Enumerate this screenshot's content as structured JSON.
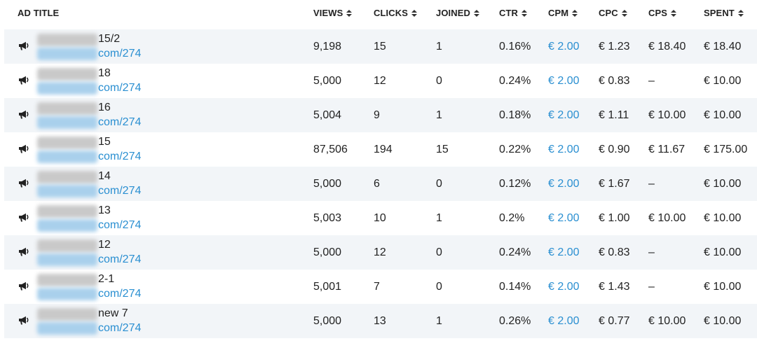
{
  "header": {
    "ad_title": "AD TITLE",
    "views": "VIEWS",
    "clicks": "CLICKS",
    "joined": "JOINED",
    "ctr": "CTR",
    "cpm": "CPM",
    "cpc": "CPC",
    "cps": "CPS",
    "spent": "SPENT"
  },
  "colors": {
    "accent_link": "#2a8fd1",
    "row_alt_bg": "#f2f5f8"
  },
  "rows": [
    {
      "title": "15/2",
      "url": "com/274",
      "views": "9,198",
      "clicks": "15",
      "joined": "1",
      "ctr": "0.16%",
      "cpm": "€ 2.00",
      "cpc": "€ 1.23",
      "cps": "€ 18.40",
      "spent": "€ 18.40"
    },
    {
      "title": "18",
      "url": "com/274",
      "views": "5,000",
      "clicks": "12",
      "joined": "0",
      "ctr": "0.24%",
      "cpm": "€ 2.00",
      "cpc": "€ 0.83",
      "cps": "–",
      "spent": "€ 10.00"
    },
    {
      "title": "16",
      "url": "com/274",
      "views": "5,004",
      "clicks": "9",
      "joined": "1",
      "ctr": "0.18%",
      "cpm": "€ 2.00",
      "cpc": "€ 1.11",
      "cps": "€ 10.00",
      "spent": "€ 10.00"
    },
    {
      "title": "15",
      "url": "com/274",
      "views": "87,506",
      "clicks": "194",
      "joined": "15",
      "ctr": "0.22%",
      "cpm": "€ 2.00",
      "cpc": "€ 0.90",
      "cps": "€ 11.67",
      "spent": "€ 175.00"
    },
    {
      "title": "14",
      "url": "com/274",
      "views": "5,000",
      "clicks": "6",
      "joined": "0",
      "ctr": "0.12%",
      "cpm": "€ 2.00",
      "cpc": "€ 1.67",
      "cps": "–",
      "spent": "€ 10.00"
    },
    {
      "title": "13",
      "url": "com/274",
      "views": "5,003",
      "clicks": "10",
      "joined": "1",
      "ctr": "0.2%",
      "cpm": "€ 2.00",
      "cpc": "€ 1.00",
      "cps": "€ 10.00",
      "spent": "€ 10.00"
    },
    {
      "title": "12",
      "url": "com/274",
      "views": "5,000",
      "clicks": "12",
      "joined": "0",
      "ctr": "0.24%",
      "cpm": "€ 2.00",
      "cpc": "€ 0.83",
      "cps": "–",
      "spent": "€ 10.00"
    },
    {
      "title": "2-1",
      "url": "com/274",
      "views": "5,001",
      "clicks": "7",
      "joined": "0",
      "ctr": "0.14%",
      "cpm": "€ 2.00",
      "cpc": "€ 1.43",
      "cps": "–",
      "spent": "€ 10.00"
    },
    {
      "title": "new 7",
      "url": "com/274",
      "views": "5,000",
      "clicks": "13",
      "joined": "1",
      "ctr": "0.26%",
      "cpm": "€ 2.00",
      "cpc": "€ 0.77",
      "cps": "€ 10.00",
      "spent": "€ 10.00"
    }
  ]
}
